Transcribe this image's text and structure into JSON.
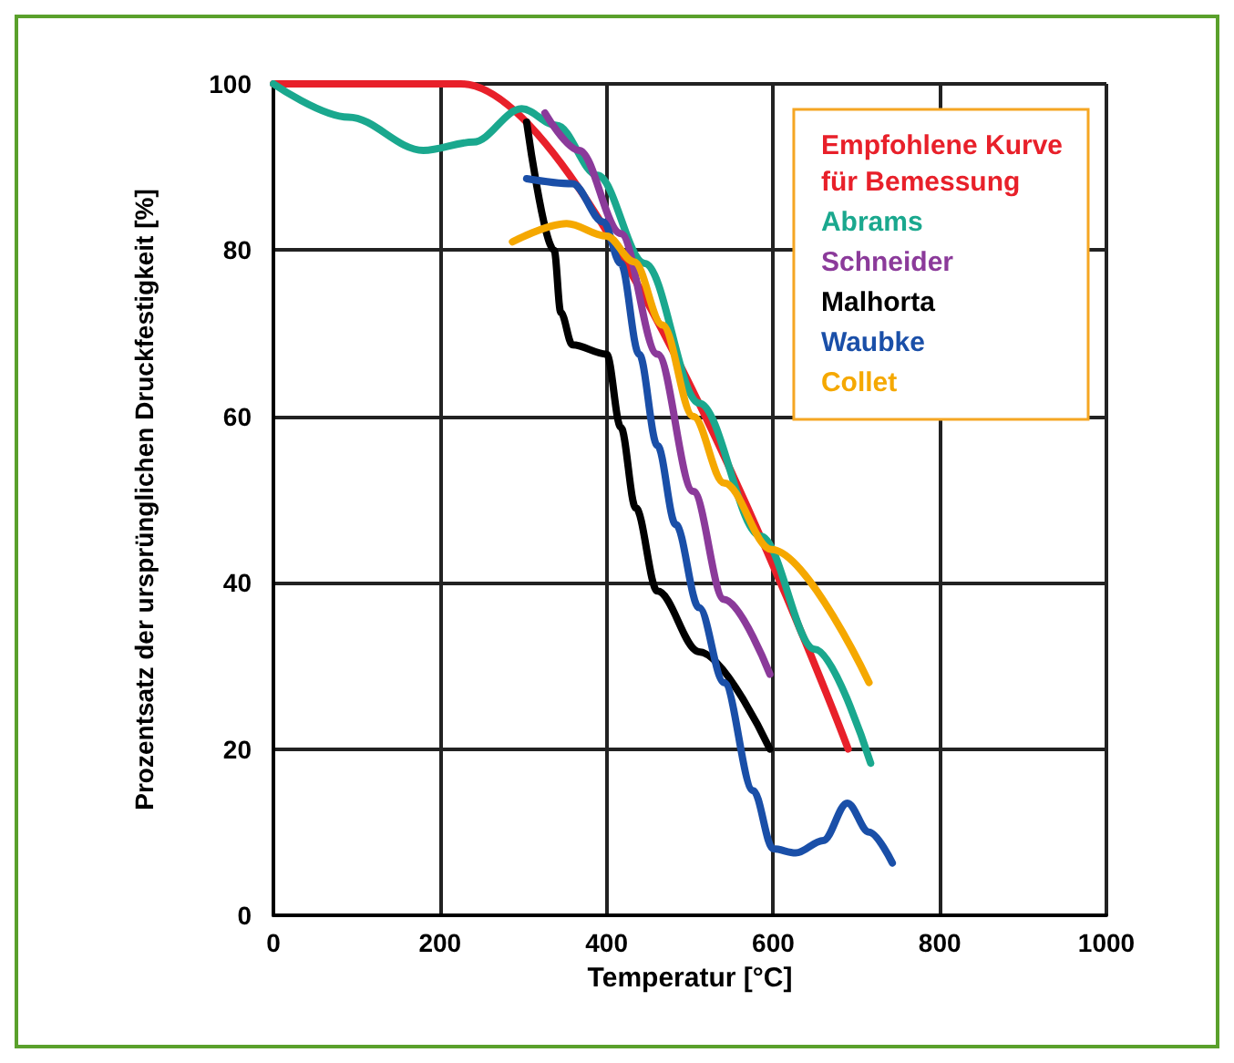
{
  "chart_data": {
    "type": "line",
    "xlabel": "Temperatur [°C]",
    "ylabel": "Prozentsatz der ursprünglichen Druckfestigkeit [%]",
    "xlim": [
      0,
      1000
    ],
    "xticks": [
      0,
      200,
      400,
      600,
      800,
      1000
    ],
    "ylim": [
      0,
      100
    ],
    "yticks": [
      0,
      20,
      40,
      60,
      80,
      100
    ],
    "grid": true,
    "legend": "top right",
    "marker": "none",
    "line_style": "solid",
    "series": [
      {
        "name": "Empfohlene Kurve\nfür Bemessung",
        "color": "#e8202a",
        "x": [
          0,
          225,
          690
        ],
        "values": [
          100,
          100,
          20
        ]
      },
      {
        "name": "Abrams",
        "color": "#1aa88e",
        "x": [
          0,
          90,
          180,
          240,
          298,
          340,
          389,
          446,
          511,
          585,
          650,
          717
        ],
        "values": [
          100,
          96,
          92,
          93,
          97,
          95,
          89,
          78.4,
          61.6,
          45.6,
          32,
          18.3
        ]
      },
      {
        "name": "Schneider",
        "color": "#8b3a9a",
        "x": [
          326,
          367,
          417,
          461,
          504,
          541,
          596
        ],
        "values": [
          96.5,
          92,
          82,
          67.5,
          51,
          38,
          29
        ]
      },
      {
        "name": "Malhorta",
        "color": "#000000",
        "x": [
          304,
          337,
          345,
          359,
          400,
          417,
          435,
          461,
          511,
          596
        ],
        "values": [
          95.4,
          80,
          72.5,
          68.6,
          67.5,
          58.7,
          49,
          39,
          31.7,
          20
        ]
      },
      {
        "name": "Waubke",
        "color": "#1a4fa8",
        "x": [
          304,
          359,
          396,
          417,
          439,
          461,
          483,
          511,
          541,
          576,
          600,
          627,
          660,
          689,
          715,
          743
        ],
        "values": [
          88.6,
          88,
          83.4,
          78.4,
          67.5,
          56.5,
          47,
          37,
          28,
          15,
          8,
          7.5,
          9,
          13.5,
          10,
          6.3
        ]
      },
      {
        "name": "Collet",
        "color": "#f5a800",
        "x": [
          287,
          352,
          400,
          433,
          467,
          504,
          541,
          598,
          715
        ],
        "values": [
          81,
          83.2,
          81.7,
          78.6,
          71,
          60,
          52,
          44,
          28
        ]
      }
    ]
  }
}
